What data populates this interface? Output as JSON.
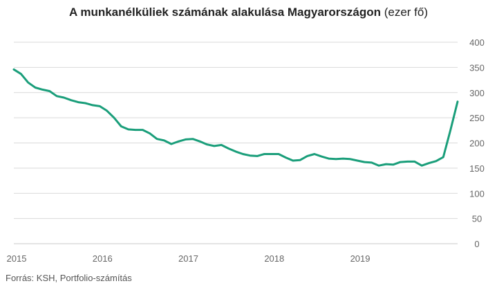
{
  "title_main": "A munkanélküliek számának alakulása Magyarországon",
  "title_unit": "(ezer fő)",
  "source": "Forrás: KSH, Portfolio-számítás",
  "chart_data": {
    "type": "line",
    "title": "A munkanélküliek számának alakulása Magyarországon (ezer fő)",
    "xlabel": "",
    "ylabel": "",
    "ylim": [
      0,
      400
    ],
    "yticks": [
      0,
      50,
      100,
      150,
      200,
      250,
      300,
      350,
      400
    ],
    "xticks": [
      "2015",
      "2016",
      "2017",
      "2018",
      "2019"
    ],
    "xlim": [
      "2015-01",
      "2020-03"
    ],
    "grid": true,
    "y_axis_position": "right",
    "color": "#1a9e7a",
    "series": [
      {
        "x": [
          "2015-01",
          "2015-02",
          "2015-03",
          "2015-04",
          "2015-05",
          "2015-06",
          "2015-07",
          "2015-08",
          "2015-09",
          "2015-10",
          "2015-11",
          "2015-12",
          "2016-01",
          "2016-02",
          "2016-03",
          "2016-04",
          "2016-05",
          "2016-06",
          "2016-07",
          "2016-08",
          "2016-09",
          "2016-10",
          "2016-11",
          "2016-12",
          "2017-01",
          "2017-02",
          "2017-03",
          "2017-04",
          "2017-05",
          "2017-06",
          "2017-07",
          "2017-08",
          "2017-09",
          "2017-10",
          "2017-11",
          "2017-12",
          "2018-01",
          "2018-02",
          "2018-03",
          "2018-04",
          "2018-05",
          "2018-06",
          "2018-07",
          "2018-08",
          "2018-09",
          "2018-10",
          "2018-11",
          "2018-12",
          "2019-01",
          "2019-02",
          "2019-03",
          "2019-04",
          "2019-05",
          "2019-06",
          "2019-07",
          "2019-08",
          "2019-09",
          "2019-10",
          "2019-11",
          "2019-12",
          "2020-01",
          "2020-02",
          "2020-03"
        ],
        "values": [
          346,
          337,
          320,
          310,
          306,
          303,
          293,
          290,
          285,
          281,
          279,
          275,
          273,
          264,
          250,
          233,
          227,
          226,
          226,
          219,
          208,
          205,
          198,
          203,
          207,
          208,
          203,
          197,
          194,
          196,
          189,
          183,
          178,
          175,
          174,
          178,
          178,
          178,
          171,
          165,
          166,
          174,
          178,
          173,
          169,
          168,
          169,
          168,
          165,
          162,
          161,
          155,
          158,
          157,
          162,
          163,
          163,
          155,
          160,
          164,
          172,
          225,
          282
        ]
      }
    ]
  }
}
